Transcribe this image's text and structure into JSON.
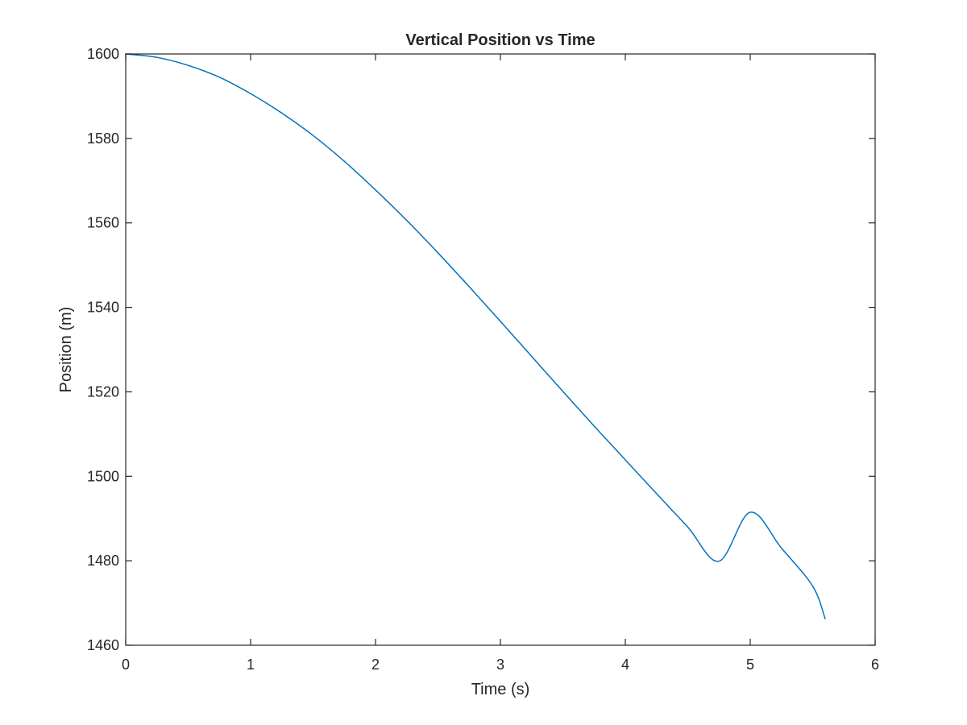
{
  "chart_data": {
    "type": "line",
    "title": "Vertical Position vs Time",
    "xlabel": "Time (s)",
    "ylabel": "Position (m)",
    "xlim": [
      0,
      6
    ],
    "ylim": [
      1460,
      1600
    ],
    "xticks": [
      0,
      1,
      2,
      3,
      4,
      5,
      6
    ],
    "yticks": [
      1460,
      1480,
      1500,
      1520,
      1540,
      1560,
      1580,
      1600
    ],
    "grid": false,
    "series": [
      {
        "color": "#0072BD",
        "x": [
          0,
          0.25,
          0.5,
          0.75,
          1.0,
          1.25,
          1.5,
          1.75,
          2.0,
          2.25,
          2.5,
          2.75,
          3.0,
          3.25,
          3.5,
          3.75,
          4.0,
          4.25,
          4.5,
          4.75,
          5.0,
          5.25,
          5.5,
          5.6
        ],
        "y": [
          1600,
          1599.2,
          1597.3,
          1594.5,
          1590.6,
          1586.0,
          1580.7,
          1574.6,
          1567.8,
          1560.6,
          1552.9,
          1544.9,
          1536.7,
          1528.4,
          1520.1,
          1511.9,
          1503.9,
          1495.9,
          1488.0,
          1479.9,
          1491.5,
          1483.0,
          1474.0,
          1466.3
        ]
      }
    ]
  }
}
